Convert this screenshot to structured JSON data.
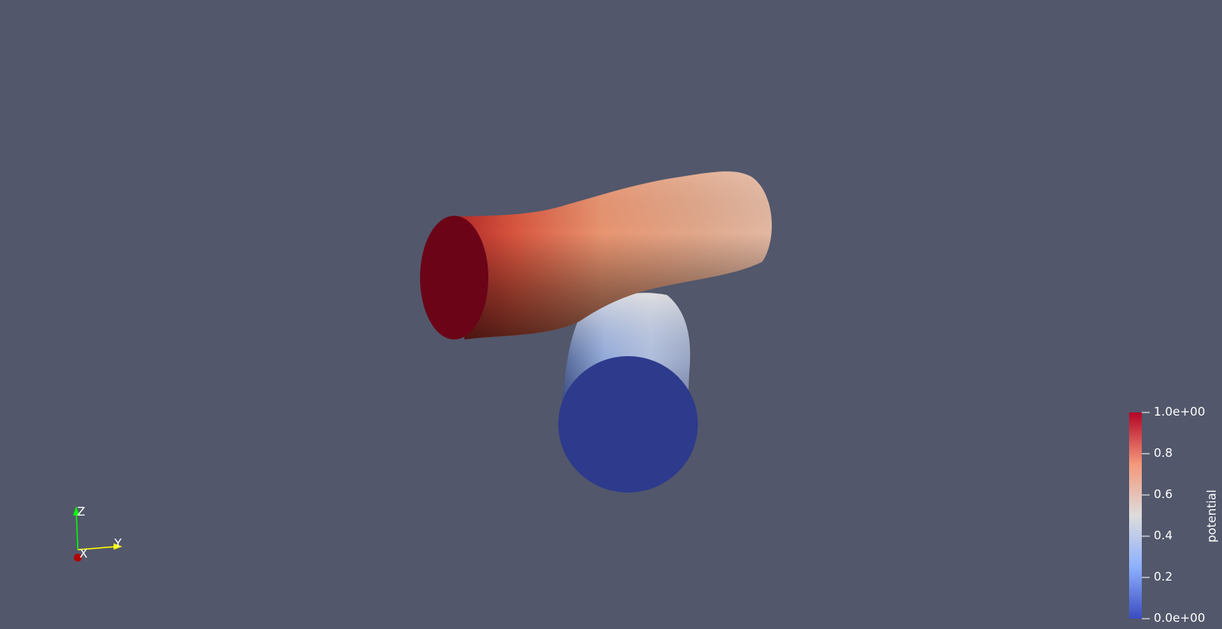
{
  "background_color": "#52576b",
  "colorbar": {
    "title": "potential",
    "labels": [
      "1.0e+00",
      "0.8",
      "0.6",
      "0.4",
      "0.2",
      "0.0e+00"
    ],
    "colormap": [
      "#3b4cc0",
      "#8db0fe",
      "#dddcdc",
      "#f4987a",
      "#b40426"
    ]
  },
  "axes_triad": {
    "x_label": "X",
    "y_label": "Y",
    "z_label": "Z",
    "x_color": "#b00000",
    "y_color": "#ffff00",
    "z_color": "#00ff00"
  }
}
